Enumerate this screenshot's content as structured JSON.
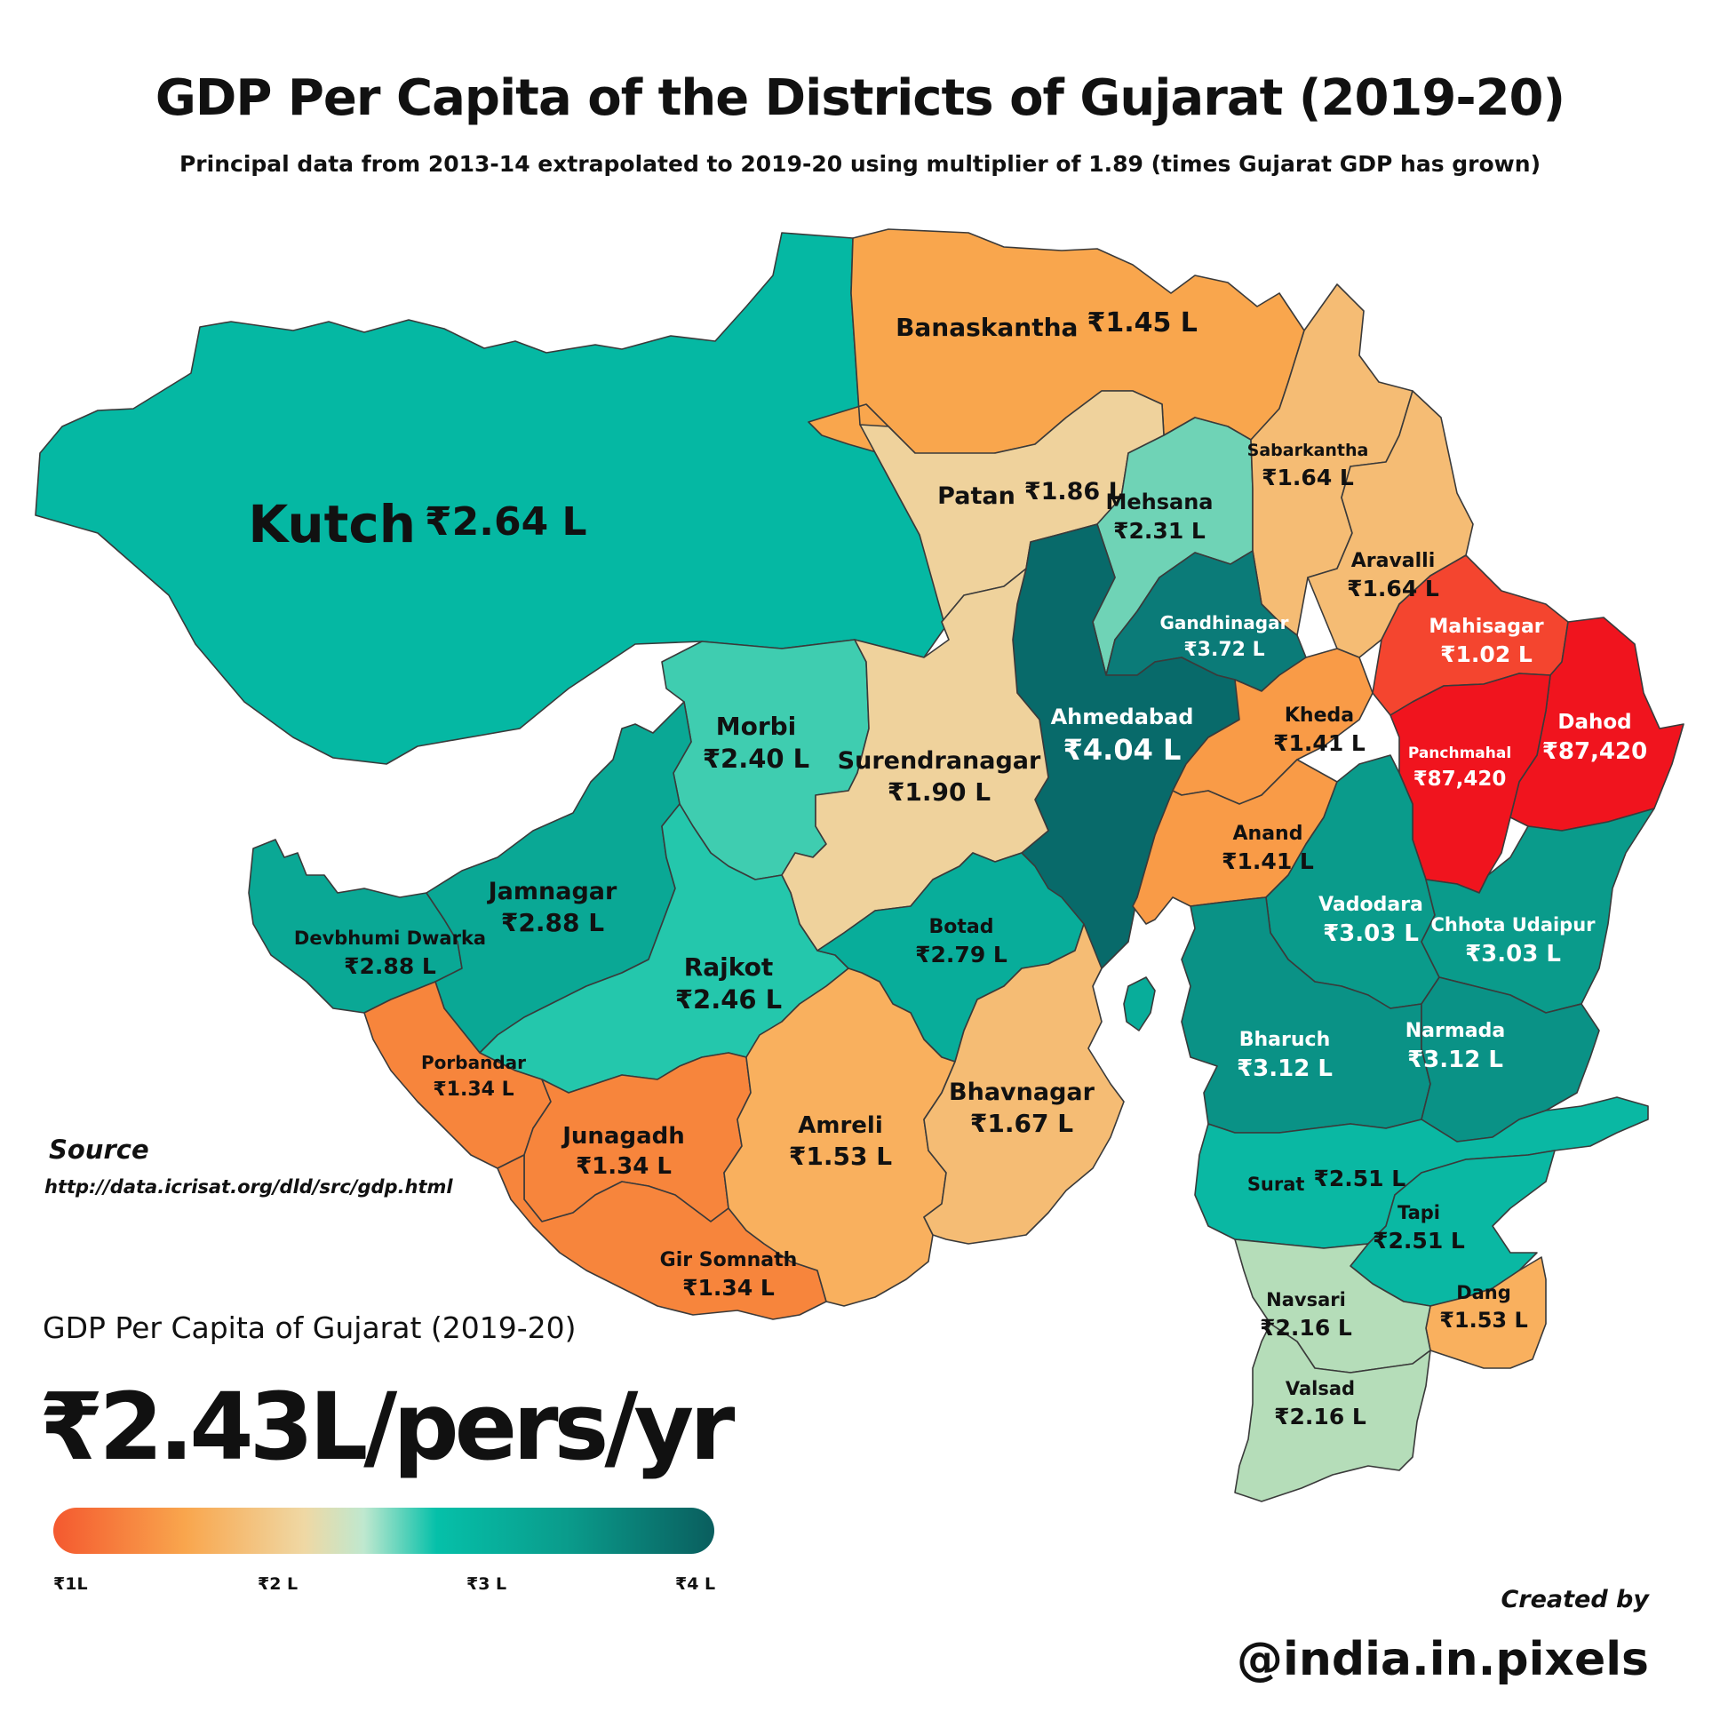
{
  "title": "GDP Per Capita of the Districts of Gujarat (2019-20)",
  "subtitle": "Principal data from 2013-14 extrapolated to 2019-20 using multiplier of 1.89 (times Gujarat GDP has grown)",
  "districts": [
    {
      "id": "kutch",
      "name": "Kutch",
      "value": "₹2.64 L",
      "color": "#05b8a3",
      "text": "#111111",
      "inline": true,
      "nsize": 58,
      "vsize": 44
    },
    {
      "id": "banaskantha",
      "name": "Banaskantha",
      "value": "₹1.45 L",
      "color": "#f9a64d",
      "text": "#111111",
      "inline": true,
      "nsize": 28,
      "vsize": 30
    },
    {
      "id": "patan",
      "name": "Patan",
      "value": "₹1.86 L",
      "color": "#efd29c",
      "text": "#111111",
      "inline": true,
      "nsize": 27,
      "vsize": 27
    },
    {
      "id": "mehsana",
      "name": "Mehsana",
      "value": "₹2.31 L",
      "color": "#6fd3b6",
      "text": "#111111",
      "inline": false,
      "nsize": 24,
      "vsize": 25
    },
    {
      "id": "sabarkantha",
      "name": "Sabarkantha",
      "value": "₹1.64 L",
      "color": "#f5bc74",
      "text": "#111111",
      "inline": false,
      "nsize": 19,
      "vsize": 25
    },
    {
      "id": "aravalli",
      "name": "Aravalli",
      "value": "₹1.64 L",
      "color": "#f5bc74",
      "text": "#111111",
      "inline": false,
      "nsize": 22,
      "vsize": 25
    },
    {
      "id": "gandhinagar",
      "name": "Gandhinagar",
      "value": "₹3.72 L",
      "color": "#0b7b78",
      "text": "#ffffff",
      "inline": false,
      "nsize": 20,
      "vsize": 22
    },
    {
      "id": "mahisagar",
      "name": "Mahisagar",
      "value": "₹1.02 L",
      "color": "#f4452f",
      "text": "#ffffff",
      "inline": false,
      "nsize": 22,
      "vsize": 25
    },
    {
      "id": "dahod",
      "name": "Dahod",
      "value": "₹87,420",
      "color": "#f0141e",
      "text": "#ffffff",
      "inline": false,
      "nsize": 23,
      "vsize": 26
    },
    {
      "id": "panchmahal",
      "name": "Panchmahal",
      "value": "₹87,420",
      "color": "#f0141e",
      "text": "#ffffff",
      "inline": false,
      "nsize": 17,
      "vsize": 23
    },
    {
      "id": "ahmedabad",
      "name": "Ahmedabad",
      "value": "₹4.04 L",
      "color": "#086a6a",
      "text": "#ffffff",
      "inline": false,
      "nsize": 24,
      "vsize": 32
    },
    {
      "id": "kheda",
      "name": "Kheda",
      "value": "₹1.41 L",
      "color": "#f99b47",
      "text": "#111111",
      "inline": false,
      "nsize": 22,
      "vsize": 25
    },
    {
      "id": "anand",
      "name": "Anand",
      "value": "₹1.41 L",
      "color": "#f99b47",
      "text": "#111111",
      "inline": false,
      "nsize": 22,
      "vsize": 25
    },
    {
      "id": "morbi",
      "name": "Morbi",
      "value": "₹2.40 L",
      "color": "#3fcdb0",
      "text": "#111111",
      "inline": false,
      "nsize": 28,
      "vsize": 29
    },
    {
      "id": "surendranagar",
      "name": "Surendranagar",
      "value": "₹1.90 L",
      "color": "#efd29c",
      "text": "#111111",
      "inline": false,
      "nsize": 27,
      "vsize": 28
    },
    {
      "id": "jamnagar",
      "name": "Jamnagar",
      "value": "₹2.88 L",
      "color": "#0aa895",
      "text": "#111111",
      "inline": false,
      "nsize": 27,
      "vsize": 28
    },
    {
      "id": "devbhumi",
      "name": "Devbhumi Dwarka",
      "value": "₹2.88 L",
      "color": "#0aa895",
      "text": "#111111",
      "inline": false,
      "nsize": 21,
      "vsize": 25
    },
    {
      "id": "rajkot",
      "name": "Rajkot",
      "value": "₹2.46 L",
      "color": "#24c7ac",
      "text": "#111111",
      "inline": false,
      "nsize": 28,
      "vsize": 29
    },
    {
      "id": "botad",
      "name": "Botad",
      "value": "₹2.79 L",
      "color": "#08ad9a",
      "text": "#111111",
      "inline": false,
      "nsize": 22,
      "vsize": 25
    },
    {
      "id": "porbandar",
      "name": "Porbandar",
      "value": "₹1.34 L",
      "color": "#f7853c",
      "text": "#111111",
      "inline": false,
      "nsize": 20,
      "vsize": 22
    },
    {
      "id": "junagadh",
      "name": "Junagadh",
      "value": "₹1.34 L",
      "color": "#f7853c",
      "text": "#111111",
      "inline": false,
      "nsize": 26,
      "vsize": 26
    },
    {
      "id": "girsomnath",
      "name": "Gir Somnath",
      "value": "₹1.34 L",
      "color": "#f7853c",
      "text": "#111111",
      "inline": false,
      "nsize": 22,
      "vsize": 25
    },
    {
      "id": "amreli",
      "name": "Amreli",
      "value": "₹1.53 L",
      "color": "#f9b05e",
      "text": "#111111",
      "inline": false,
      "nsize": 26,
      "vsize": 28
    },
    {
      "id": "bhavnagar",
      "name": "Bhavnagar",
      "value": "₹1.67 L",
      "color": "#f5bc74",
      "text": "#111111",
      "inline": false,
      "nsize": 27,
      "vsize": 28
    },
    {
      "id": "vadodara",
      "name": "Vadodara",
      "value": "₹3.03 L",
      "color": "#0a9b8b",
      "text": "#ffffff",
      "inline": false,
      "nsize": 22,
      "vsize": 26
    },
    {
      "id": "chhotaudaipur",
      "name": "Chhota Udaipur",
      "value": "₹3.03 L",
      "color": "#0a9b8b",
      "text": "#ffffff",
      "inline": false,
      "nsize": 21,
      "vsize": 26
    },
    {
      "id": "bharuch",
      "name": "Bharuch",
      "value": "₹3.12 L",
      "color": "#0a9286",
      "text": "#ffffff",
      "inline": false,
      "nsize": 22,
      "vsize": 26
    },
    {
      "id": "narmada",
      "name": "Narmada",
      "value": "₹3.12 L",
      "color": "#0a9286",
      "text": "#ffffff",
      "inline": false,
      "nsize": 22,
      "vsize": 26
    },
    {
      "id": "surat",
      "name": "Surat",
      "value": "₹2.51 L",
      "color": "#0ab8a3",
      "text": "#111111",
      "inline": true,
      "nsize": 21,
      "vsize": 25
    },
    {
      "id": "tapi",
      "name": "Tapi",
      "value": "₹2.51 L",
      "color": "#0ab8a3",
      "text": "#111111",
      "inline": false,
      "nsize": 21,
      "vsize": 25
    },
    {
      "id": "dang",
      "name": "Dang",
      "value": "₹1.53 L",
      "color": "#f9b05e",
      "text": "#111111",
      "inline": false,
      "nsize": 21,
      "vsize": 24
    },
    {
      "id": "navsari",
      "name": "Navsari",
      "value": "₹2.16 L",
      "color": "#b5ddb9",
      "text": "#111111",
      "inline": false,
      "nsize": 21,
      "vsize": 25
    },
    {
      "id": "valsad",
      "name": "Valsad",
      "value": "₹2.16 L",
      "color": "#b5ddb9",
      "text": "#111111",
      "inline": false,
      "nsize": 21,
      "vsize": 25
    }
  ],
  "source": {
    "label": "Source",
    "url": "http://data.icrisat.org/dld/src/gdp.html"
  },
  "state_average": {
    "label": "GDP Per Capita of Gujarat (2019-20)",
    "value": "₹2.43L/pers/yr"
  },
  "legend": {
    "ticks": [
      "₹1L",
      "₹2 L",
      "₹3 L",
      "₹4 L"
    ]
  },
  "credit": {
    "label": "Created by",
    "handle": "@india.in.pixels"
  }
}
